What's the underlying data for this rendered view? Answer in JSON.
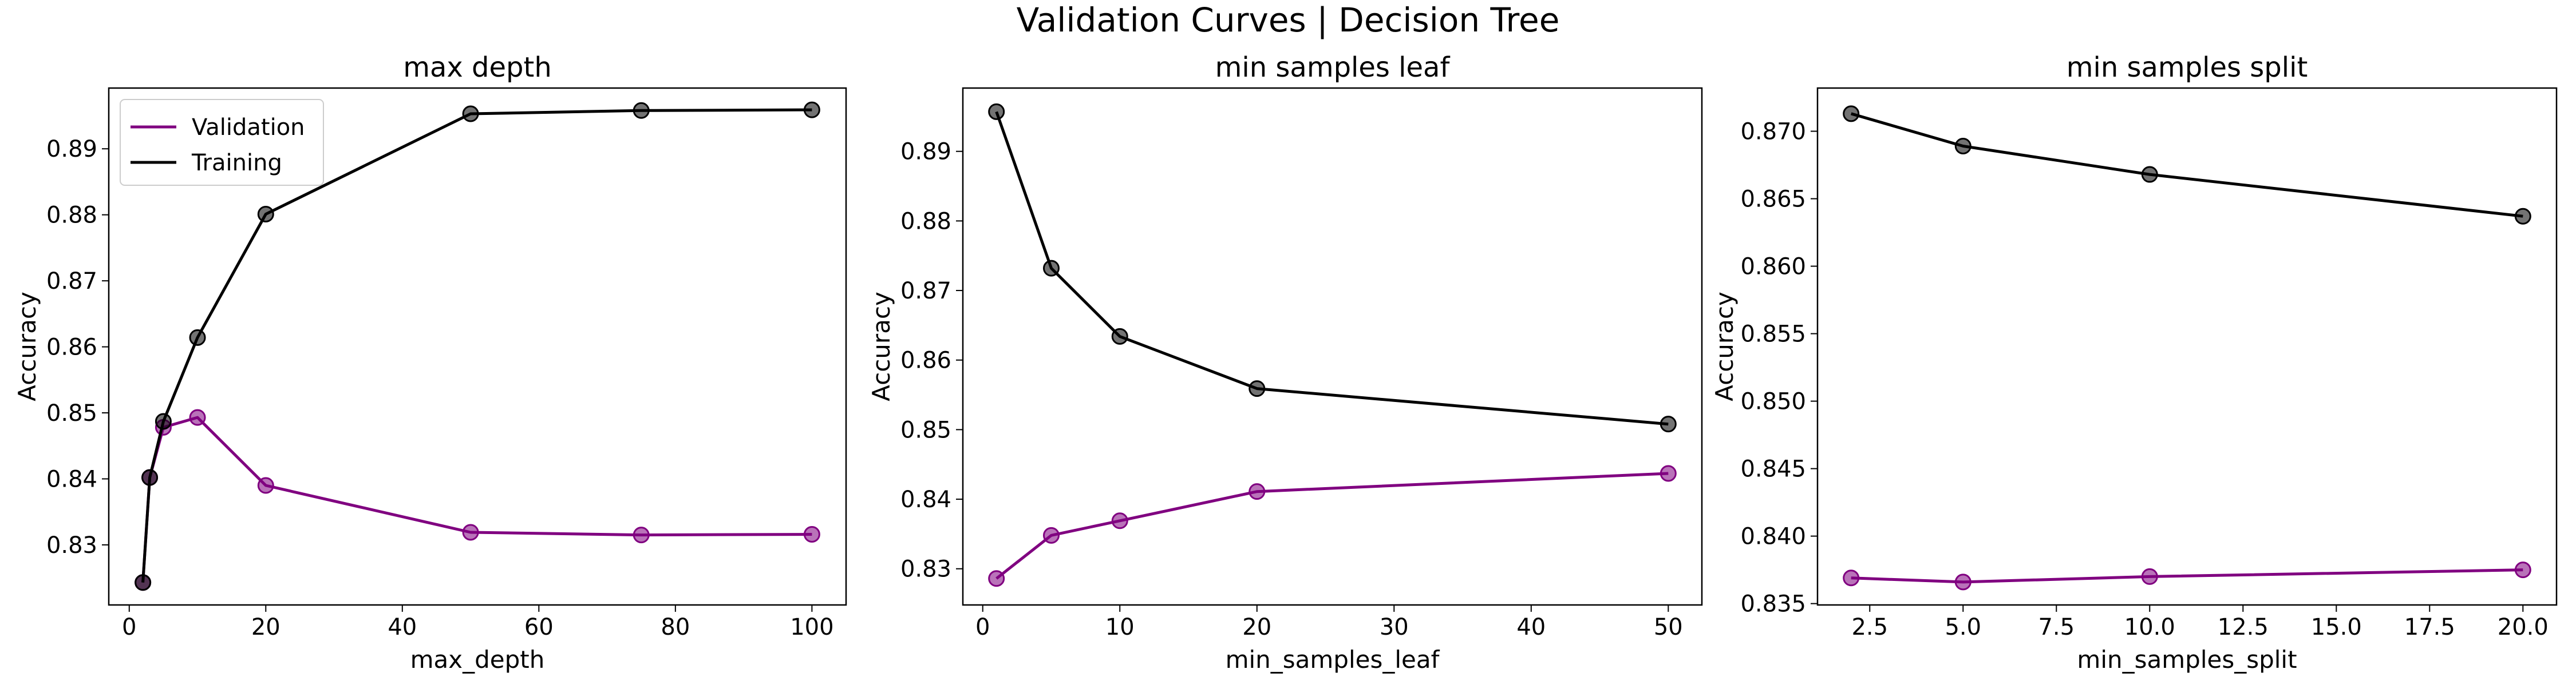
{
  "figure": {
    "title": "Validation Curves | Decision Tree"
  },
  "legend": {
    "placement": "top-left",
    "entries": [
      "Validation",
      "Training"
    ]
  },
  "colors": {
    "validation": "#800080",
    "training": "#000000"
  },
  "chart_data": [
    {
      "type": "line",
      "title": "max depth",
      "xlabel": "max_depth",
      "ylabel": "Accuracy",
      "xlim": [
        -3,
        105
      ],
      "ylim": [
        0.8209,
        0.8992
      ],
      "xticks": [
        0,
        20,
        40,
        60,
        80,
        100
      ],
      "xtick_labels": [
        "0",
        "20",
        "40",
        "60",
        "80",
        "100"
      ],
      "yticks": [
        0.83,
        0.84,
        0.85,
        0.86,
        0.87,
        0.88,
        0.89
      ],
      "ytick_labels": [
        "0.83",
        "0.84",
        "0.85",
        "0.86",
        "0.87",
        "0.88",
        "0.89"
      ],
      "grid": false,
      "legend": true,
      "x": [
        2,
        3,
        5,
        10,
        20,
        50,
        75,
        100
      ],
      "series": [
        {
          "name": "Validation",
          "values": [
            0.8243,
            0.8402,
            0.8478,
            0.8493,
            0.839,
            0.8319,
            0.8315,
            0.8316
          ]
        },
        {
          "name": "Training",
          "values": [
            0.8243,
            0.8402,
            0.8487,
            0.8614,
            0.8801,
            0.8953,
            0.8958,
            0.8959
          ]
        }
      ]
    },
    {
      "type": "line",
      "title": "min samples leaf",
      "xlabel": "min_samples_leaf",
      "ylabel": "Accuracy",
      "xlim": [
        -1.45,
        52.45
      ],
      "ylim": [
        0.8248,
        0.8991
      ],
      "xticks": [
        0,
        10,
        20,
        30,
        40,
        50
      ],
      "xtick_labels": [
        "0",
        "10",
        "20",
        "30",
        "40",
        "50"
      ],
      "yticks": [
        0.83,
        0.84,
        0.85,
        0.86,
        0.87,
        0.88,
        0.89
      ],
      "ytick_labels": [
        "0.83",
        "0.84",
        "0.85",
        "0.86",
        "0.87",
        "0.88",
        "0.89"
      ],
      "grid": false,
      "legend": false,
      "x": [
        1,
        5,
        10,
        20,
        50
      ],
      "series": [
        {
          "name": "Validation",
          "values": [
            0.8286,
            0.8348,
            0.8369,
            0.8411,
            0.8437
          ]
        },
        {
          "name": "Training",
          "values": [
            0.8957,
            0.8732,
            0.8634,
            0.8559,
            0.8508
          ]
        }
      ]
    },
    {
      "type": "line",
      "title": "min samples split",
      "xlabel": "min_samples_split",
      "ylabel": "Accuracy",
      "xlim": [
        1.1,
        20.9
      ],
      "ylim": [
        0.8349,
        0.8732
      ],
      "xticks": [
        2.5,
        5.0,
        7.5,
        10.0,
        12.5,
        15.0,
        17.5,
        20.0
      ],
      "xtick_labels": [
        "2.5",
        "5.0",
        "7.5",
        "10.0",
        "12.5",
        "15.0",
        "17.5",
        "20.0"
      ],
      "yticks": [
        0.835,
        0.84,
        0.845,
        0.85,
        0.855,
        0.86,
        0.865,
        0.87
      ],
      "ytick_labels": [
        "0.835",
        "0.840",
        "0.845",
        "0.850",
        "0.855",
        "0.860",
        "0.865",
        "0.870"
      ],
      "grid": false,
      "legend": false,
      "x": [
        2,
        5,
        10,
        20
      ],
      "series": [
        {
          "name": "Validation",
          "values": [
            0.8369,
            0.8366,
            0.837,
            0.8375
          ]
        },
        {
          "name": "Training",
          "values": [
            0.8713,
            0.8689,
            0.8668,
            0.8637
          ]
        }
      ]
    }
  ]
}
